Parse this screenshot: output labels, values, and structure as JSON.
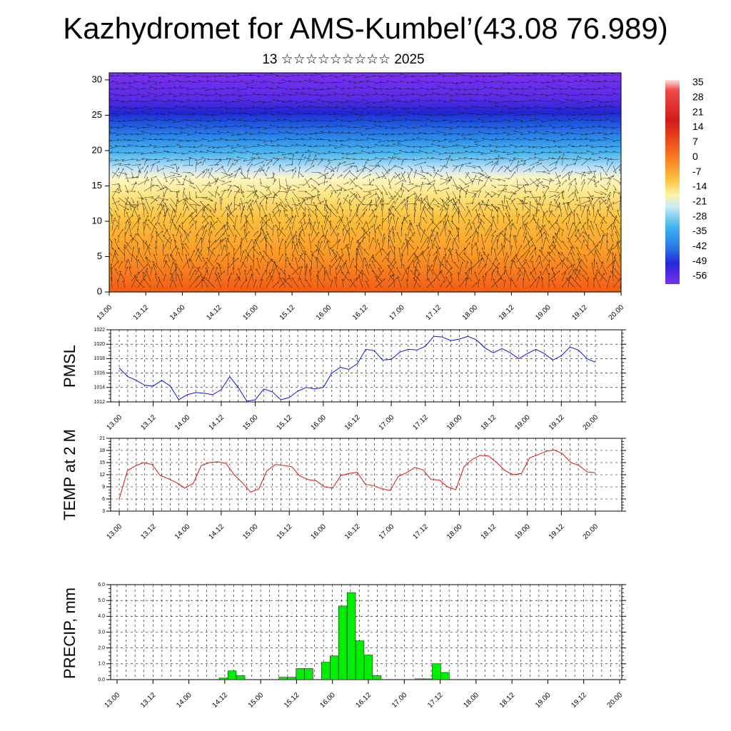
{
  "header": {
    "title": "Kazhydromet for AMS-Kumbel’(43.08 76.989)",
    "subtitle": "13 ☆☆☆☆☆☆☆☆☆ 2025"
  },
  "chart_data": [
    {
      "type": "heatmap",
      "x_ticks": [
        "13.00",
        "13.12",
        "14.00",
        "14.12",
        "15.00",
        "15.12",
        "16.00",
        "16.12",
        "17.00",
        "17.12",
        "18.00",
        "18.12",
        "19.00",
        "19.12",
        "20.00"
      ],
      "y_ticks": [
        "0",
        "5",
        "10",
        "15",
        "20",
        "25",
        "30"
      ],
      "ylim": [
        0,
        31
      ],
      "colorbar_labels": [
        "35",
        "28",
        "21",
        "14",
        "7",
        "0",
        "-7",
        "-14",
        "-21",
        "-28",
        "-35",
        "-42",
        "-49",
        "-56"
      ],
      "overlay": "wind vectors"
    },
    {
      "type": "line",
      "ylabel": "PMSL",
      "ylim": [
        1012,
        1022
      ],
      "y_ticks": [
        "1012",
        "1014",
        "1016",
        "1018",
        "1020",
        "1022"
      ],
      "x_ticks": [
        "13.00",
        "13.12",
        "14.00",
        "14.12",
        "15.00",
        "15.12",
        "16.00",
        "16.12",
        "17.00",
        "17.12",
        "18.00",
        "18.12",
        "19.00",
        "19.12",
        "20.00"
      ],
      "series": [
        {
          "color": "#1010e0",
          "values": [
            1016.7,
            1015.5,
            1015.0,
            1014.3,
            1014.2,
            1015.0,
            1014.2,
            1012.3,
            1013.0,
            1013.3,
            1013.2,
            1013.0,
            1013.7,
            1015.5,
            1014.0,
            1012.1,
            1012.3,
            1013.8,
            1013.4,
            1012.3,
            1012.6,
            1013.5,
            1014.0,
            1013.8,
            1014.0,
            1016.0,
            1016.8,
            1016.5,
            1017.3,
            1019.3,
            1019.1,
            1017.8,
            1017.9,
            1018.9,
            1019.3,
            1019.2,
            1019.7,
            1021.1,
            1021.0,
            1020.5,
            1020.7,
            1021.1,
            1020.6,
            1019.5,
            1018.8,
            1019.4,
            1018.8,
            1018.0,
            1018.7,
            1019.3,
            1018.7,
            1017.8,
            1018.4,
            1019.6,
            1019.2,
            1018.0,
            1017.5
          ]
        }
      ]
    },
    {
      "type": "line",
      "ylabel": "TEMP at 2 M",
      "ylim": [
        3,
        21
      ],
      "y_ticks": [
        "3",
        "6",
        "9",
        "12",
        "15",
        "18",
        "21"
      ],
      "x_ticks": [
        "13.00",
        "13.12",
        "14.00",
        "14.12",
        "15.00",
        "15.12",
        "16.00",
        "16.12",
        "17.00",
        "17.12",
        "18.00",
        "18.12",
        "19.00",
        "19.12",
        "20.00"
      ],
      "series": [
        {
          "color": "#e01010",
          "values": [
            6.0,
            13.0,
            14.2,
            15.0,
            14.5,
            11.8,
            11.0,
            10.0,
            8.7,
            9.8,
            14.3,
            15.0,
            15.2,
            14.8,
            12.0,
            10.0,
            7.7,
            8.5,
            13.0,
            14.5,
            14.3,
            14.0,
            11.7,
            10.8,
            10.5,
            9.0,
            8.7,
            11.8,
            12.3,
            12.6,
            9.6,
            9.3,
            8.5,
            8.1,
            11.6,
            12.5,
            13.8,
            13.2,
            10.8,
            10.7,
            9.0,
            8.3,
            14.0,
            15.8,
            16.8,
            16.6,
            15.0,
            13.0,
            12.0,
            12.3,
            16.2,
            16.9,
            17.8,
            18.1,
            17.2,
            15.0,
            14.3,
            12.7,
            12.5
          ]
        }
      ]
    },
    {
      "type": "bar",
      "ylabel": "PRECIP, mm",
      "ylim": [
        0,
        6
      ],
      "y_ticks": [
        "0.0",
        "1.0",
        "2.0",
        "3.0",
        "4.0",
        "5.0",
        "6.0"
      ],
      "x_ticks": [
        "13.00",
        "13.12",
        "14.00",
        "14.12",
        "15.00",
        "15.12",
        "16.00",
        "16.12",
        "17.00",
        "17.12",
        "18.00",
        "18.12",
        "19.00",
        "19.12",
        "20.00"
      ],
      "series": [
        {
          "color": "#00ee00",
          "values": [
            0,
            0,
            0,
            0,
            0,
            0,
            0,
            0,
            0,
            0,
            0,
            0,
            0.1,
            0.55,
            0.25,
            0,
            0,
            0,
            0,
            0.15,
            0.15,
            0.7,
            0.7,
            0,
            1.1,
            1.5,
            4.65,
            5.5,
            2.45,
            1.55,
            0.25,
            0,
            0,
            0,
            0,
            0.05,
            0.05,
            1.0,
            0.45,
            0,
            0,
            0,
            0,
            0,
            0,
            0,
            0,
            0,
            0,
            0,
            0,
            0,
            0,
            0,
            0,
            0,
            0,
            0,
            0
          ]
        }
      ]
    }
  ]
}
